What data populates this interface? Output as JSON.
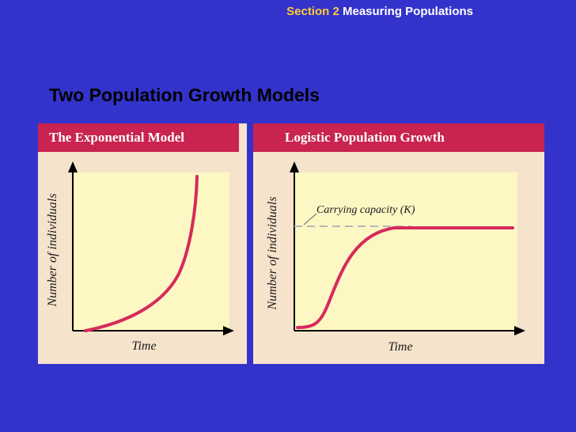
{
  "header": {
    "section_label": "Section 2",
    "section_title": "Measuring Populations"
  },
  "slide": {
    "title": "Two Population Growth Models"
  },
  "exponential_panel": {
    "title": "The Exponential Model",
    "ylabel": "Number of individuals",
    "xlabel": "Time"
  },
  "logistic_panel": {
    "title": "Logistic Population Growth",
    "ylabel": "Number of individuals",
    "xlabel": "Time",
    "annotation": "Carrying capacity (K)"
  },
  "colors": {
    "background": "#3333cc",
    "section_label": "#ffcc33",
    "panel_header": "#c8244f",
    "panel_bg": "#f6e3cc",
    "plot_bg": "#fdf7c3",
    "curve": "#d62a5c",
    "dashed_line": "#b8b8b8"
  }
}
